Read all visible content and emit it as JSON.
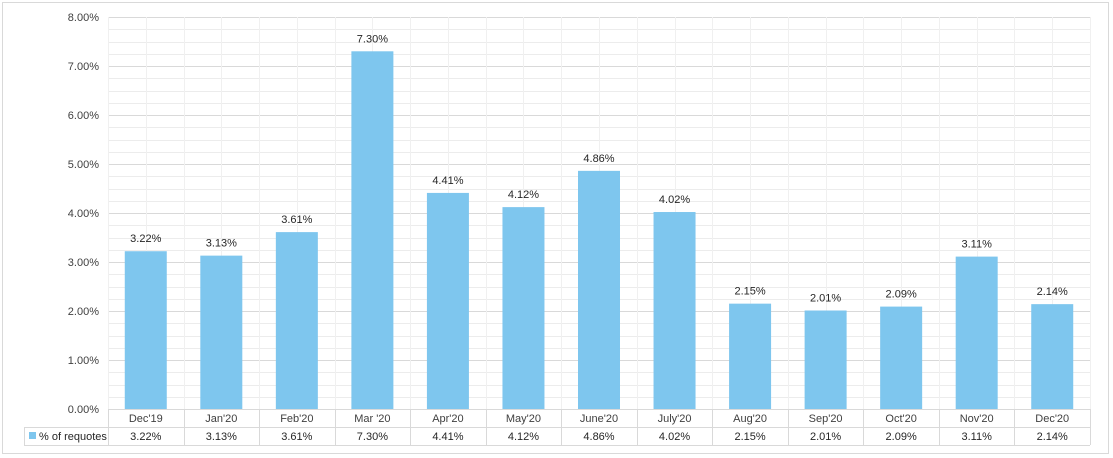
{
  "chart_data": {
    "type": "bar",
    "categories": [
      "Dec'19",
      "Jan'20",
      "Feb'20",
      "Mar '20",
      "Apr'20",
      "May'20",
      "June'20",
      "July'20",
      "Aug'20",
      "Sep'20",
      "Oct'20",
      "Nov'20",
      "Dec'20"
    ],
    "series": [
      {
        "name": "% of requotes",
        "values": [
          3.22,
          3.13,
          3.61,
          7.3,
          4.41,
          4.12,
          4.86,
          4.02,
          2.15,
          2.01,
          2.09,
          3.11,
          2.14
        ],
        "labels": [
          "3.22%",
          "3.13%",
          "3.61%",
          "7.30%",
          "4.41%",
          "4.12%",
          "4.86%",
          "4.02%",
          "2.15%",
          "2.01%",
          "2.09%",
          "3.11%",
          "2.14%"
        ],
        "color": "#7ec6ee"
      }
    ],
    "yticks": [
      "0.00%",
      "1.00%",
      "2.00%",
      "3.00%",
      "4.00%",
      "5.00%",
      "6.00%",
      "7.00%",
      "8.00%"
    ],
    "ylim": [
      0,
      8
    ],
    "ytick_step": 1,
    "minor_grid_step": 0.25,
    "grid": true,
    "legend": "data-table",
    "data_table": true,
    "title": "",
    "xlabel": "",
    "ylabel": ""
  }
}
